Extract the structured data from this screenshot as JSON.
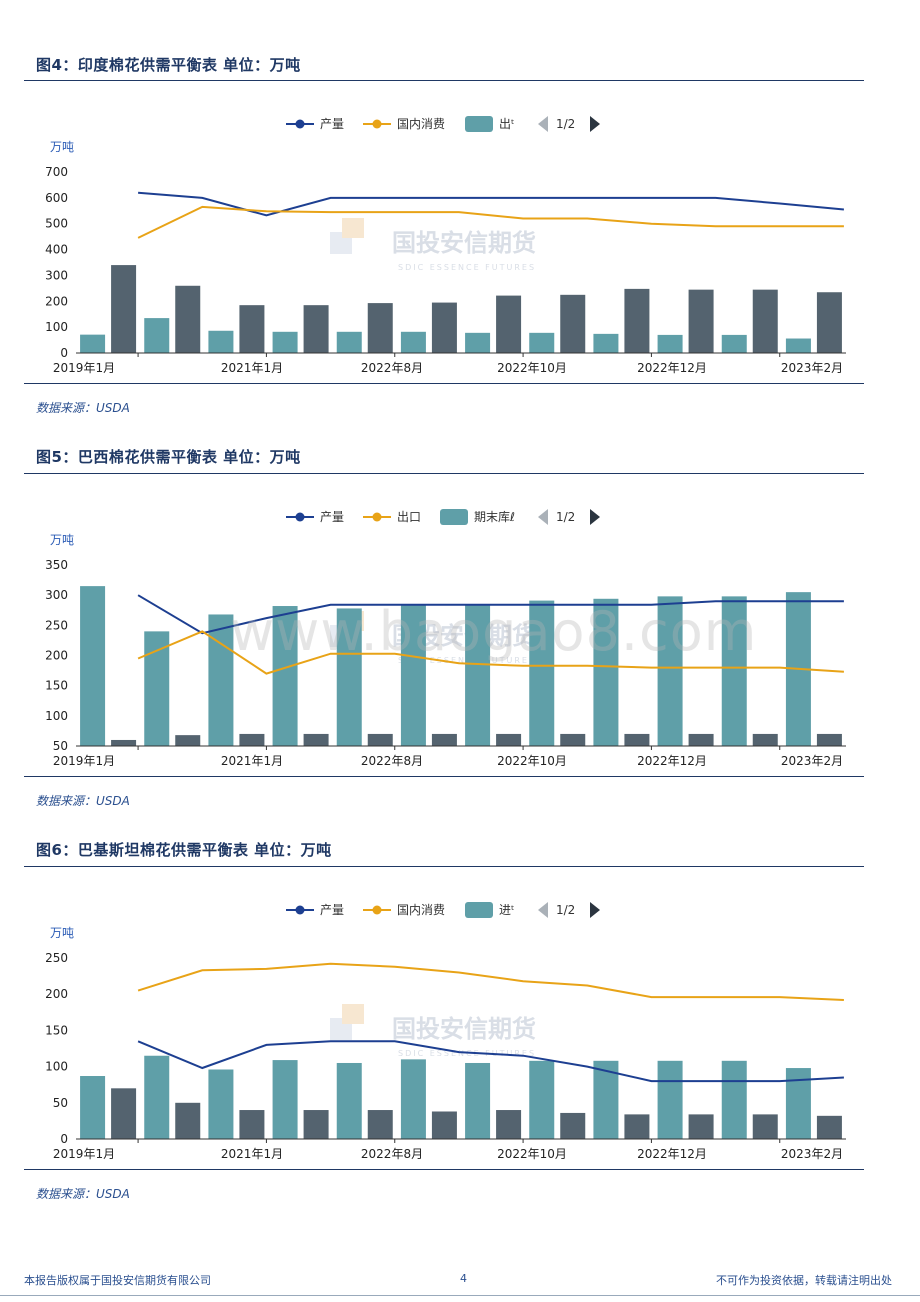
{
  "colors": {
    "production": "#1d3f91",
    "secondary_line": "#e8a317",
    "bar_light": "#5f9fa8",
    "bar_dark": "#54636f",
    "title": "#1f3864"
  },
  "figures": [
    {
      "title": "图4：印度棉花供需平衡表 单位：万吨",
      "source": "数据来源：USDA",
      "unit": "万吨",
      "pager": "1/2",
      "legend": [
        {
          "label": "产量",
          "kind": "line",
          "color_key": "production"
        },
        {
          "label": "国内消费",
          "kind": "line",
          "color_key": "secondary_line"
        },
        {
          "label": "出ᵗ",
          "kind": "bar",
          "color_key": "bar_light"
        }
      ]
    },
    {
      "title": "图5：巴西棉花供需平衡表 单位：万吨",
      "source": "数据来源：USDA",
      "unit": "万吨",
      "pager": "1/2",
      "legend": [
        {
          "label": "产量",
          "kind": "line",
          "color_key": "production"
        },
        {
          "label": "出口",
          "kind": "line",
          "color_key": "secondary_line"
        },
        {
          "label": "期末库ℓ",
          "kind": "bar",
          "color_key": "bar_light"
        }
      ]
    },
    {
      "title": "图6：巴基斯坦棉花供需平衡表 单位：万吨",
      "source": "数据来源：USDA",
      "unit": "万吨",
      "pager": "1/2",
      "legend": [
        {
          "label": "产量",
          "kind": "line",
          "color_key": "production"
        },
        {
          "label": "国内消费",
          "kind": "line",
          "color_key": "secondary_line"
        },
        {
          "label": "进ᵗ",
          "kind": "bar",
          "color_key": "bar_light"
        }
      ]
    }
  ],
  "watermark": {
    "brand": "国投安信期货",
    "brand_sub": "SDIC ESSENCE FUTURES",
    "url": "www.baogao8.com"
  },
  "footer": {
    "left": "本报告版权属于国投安信期货有限公司",
    "page": "4",
    "right": "不可作为投资依据，转载请注明出处"
  },
  "chart_data": [
    {
      "type": "bar",
      "ylim": [
        0,
        700
      ],
      "yticks": [
        0,
        100,
        200,
        300,
        400,
        500,
        600,
        700
      ],
      "grid": false,
      "legend_position": "top-center",
      "tick_labels": [
        "2019年1月",
        "2021年1月",
        "2022年8月",
        "2022年10月",
        "2022年12月",
        "2023年2月"
      ],
      "line_series": [
        {
          "name": "产量",
          "color_key": "production",
          "values": [
            620,
            600,
            532,
            600,
            600,
            600,
            600,
            600,
            600,
            600,
            578,
            555
          ]
        },
        {
          "name": "国内消费",
          "color_key": "secondary_line",
          "values": [
            445,
            565,
            548,
            545,
            545,
            545,
            520,
            520,
            500,
            490,
            490,
            490
          ]
        }
      ],
      "bar_series": [
        {
          "color_key": "bar_light",
          "values": [
            71,
            135,
            86,
            82,
            82,
            82,
            78,
            78,
            74,
            70,
            70,
            56
          ]
        },
        {
          "color_key": "bar_dark",
          "values": [
            340,
            260,
            185,
            185,
            193,
            195,
            222,
            225,
            248,
            245,
            245,
            235
          ]
        }
      ]
    },
    {
      "type": "bar",
      "ylim": [
        50,
        350
      ],
      "yticks": [
        50,
        100,
        150,
        200,
        250,
        300,
        350
      ],
      "grid": false,
      "legend_position": "top-center",
      "tick_labels": [
        "2019年1月",
        "2021年1月",
        "2022年8月",
        "2022年10月",
        "2022年12月",
        "2023年2月"
      ],
      "line_series": [
        {
          "name": "产量",
          "color_key": "production",
          "values": [
            300,
            237,
            262,
            284,
            284,
            284,
            284,
            284,
            284,
            290,
            290,
            290
          ]
        },
        {
          "name": "出口",
          "color_key": "secondary_line",
          "values": [
            195,
            240,
            170,
            203,
            203,
            187,
            183,
            183,
            180,
            180,
            180,
            173
          ]
        },
        {
          "color_key": "production",
          "values": []
        }
      ],
      "bar_series": [
        {
          "color_key": "bar_light",
          "values": [
            315,
            240,
            268,
            282,
            278,
            285,
            285,
            291,
            294,
            298,
            298,
            305
          ]
        },
        {
          "color_key": "bar_dark",
          "values": [
            60,
            68,
            70,
            70,
            70,
            70,
            70,
            70,
            70,
            70,
            70,
            70
          ]
        }
      ]
    },
    {
      "type": "bar",
      "ylim": [
        0,
        250
      ],
      "yticks": [
        0,
        50,
        100,
        150,
        200,
        250
      ],
      "grid": false,
      "legend_position": "top-center",
      "tick_labels": [
        "2019年1月",
        "2021年1月",
        "2022年8月",
        "2022年10月",
        "2022年12月",
        "2023年2月"
      ],
      "line_series": [
        {
          "name": "产量",
          "color_key": "production",
          "values": [
            135,
            98,
            130,
            135,
            135,
            120,
            115,
            100,
            80,
            80,
            80,
            85
          ]
        },
        {
          "name": "国内消费",
          "color_key": "secondary_line",
          "values": [
            205,
            233,
            235,
            242,
            238,
            230,
            218,
            212,
            196,
            196,
            196,
            192
          ]
        }
      ],
      "bar_series": [
        {
          "color_key": "bar_light",
          "values": [
            87,
            115,
            96,
            109,
            105,
            110,
            105,
            108,
            108,
            108,
            108,
            98
          ]
        },
        {
          "color_key": "bar_dark",
          "values": [
            70,
            50,
            40,
            40,
            40,
            38,
            40,
            36,
            34,
            34,
            34,
            32
          ]
        }
      ]
    }
  ]
}
